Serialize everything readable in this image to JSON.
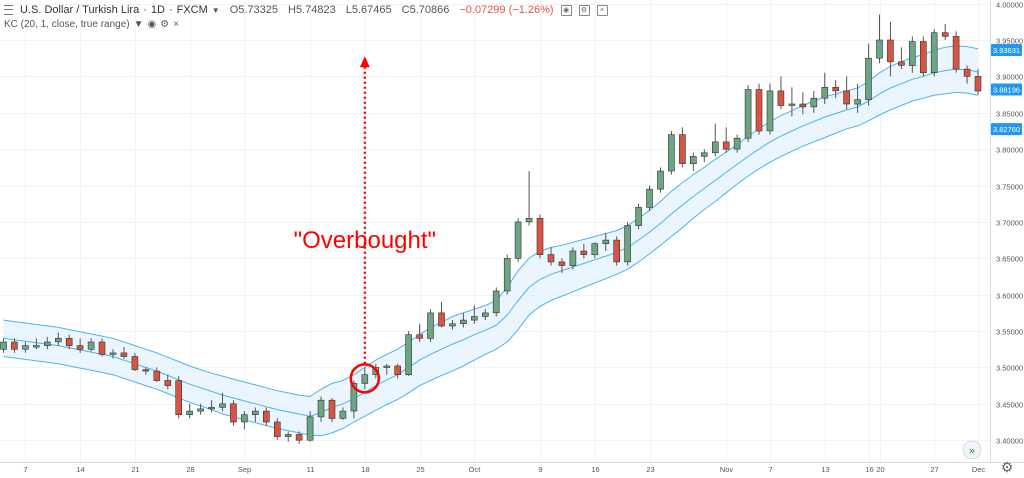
{
  "header": {
    "symbol": "U.S. Dollar / Turkish Lira",
    "interval": "1D",
    "exchange": "FXCM",
    "open": "O5.73325",
    "high": "H5.74823",
    "low": "L5.67465",
    "close": "C5.70866",
    "change": "−0.07299 (−1.26%)"
  },
  "indicator": {
    "label": "KC (20, 1, close, true range)"
  },
  "icons": {
    "menu": "hamburger-menu-icon",
    "dropdown": "chevron-down-icon",
    "hide": "eye-icon",
    "settings": "gear-icon",
    "close": "close-icon",
    "scroll": "double-chevron-right-icon"
  },
  "colors": {
    "up": "#6ba583",
    "down": "#d75442",
    "band": "#4fb3ea",
    "band_fill": "#e3f2fd",
    "annotation": "#ff0000",
    "price_tag": "#2196f3"
  },
  "chart_data": {
    "type": "candlestick",
    "ylim": [
      3.37,
      4.005
    ],
    "y_ticks": [
      3.4,
      3.45,
      3.5,
      3.55,
      3.6,
      3.65,
      3.7,
      3.75,
      3.8,
      3.85,
      3.9,
      3.95,
      4.0
    ],
    "y_tick_labels": [
      "3.40000",
      "3.45000",
      "3.50000",
      "3.55000",
      "3.60000",
      "3.65000",
      "3.70000",
      "3.75000",
      "3.80000",
      "3.85000",
      "3.90000",
      "3.95000",
      "4.00000"
    ],
    "x_labels": [
      {
        "label": "7",
        "index": 2
      },
      {
        "label": "14",
        "index": 7
      },
      {
        "label": "21",
        "index": 12
      },
      {
        "label": "28",
        "index": 17
      },
      {
        "label": "Sep",
        "index": 22
      },
      {
        "label": "11",
        "index": 28
      },
      {
        "label": "18",
        "index": 33
      },
      {
        "label": "25",
        "index": 38
      },
      {
        "label": "Oct",
        "index": 43
      },
      {
        "label": "9",
        "index": 49
      },
      {
        "label": "16",
        "index": 54
      },
      {
        "label": "23",
        "index": 59
      },
      {
        "label": "Nov",
        "index": 66
      },
      {
        "label": "7",
        "index": 70
      },
      {
        "label": "13",
        "index": 75
      },
      {
        "label": "16",
        "index": 79
      },
      {
        "label": "20",
        "index": 80
      },
      {
        "label": "27",
        "index": 85
      },
      {
        "label": "Dec",
        "index": 89
      }
    ],
    "candles": [
      [
        3.525,
        3.54,
        3.52,
        3.535
      ],
      [
        3.535,
        3.54,
        3.52,
        3.525
      ],
      [
        3.525,
        3.535,
        3.52,
        3.53
      ],
      [
        3.528,
        3.54,
        3.525,
        3.53
      ],
      [
        3.53,
        3.542,
        3.525,
        3.535
      ],
      [
        3.535,
        3.548,
        3.53,
        3.54
      ],
      [
        3.54,
        3.545,
        3.525,
        3.53
      ],
      [
        3.53,
        3.54,
        3.52,
        3.525
      ],
      [
        3.525,
        3.54,
        3.522,
        3.535
      ],
      [
        3.535,
        3.54,
        3.515,
        3.518
      ],
      [
        3.518,
        3.525,
        3.512,
        3.52
      ],
      [
        3.52,
        3.528,
        3.512,
        3.515
      ],
      [
        3.515,
        3.52,
        3.495,
        3.497
      ],
      [
        3.497,
        3.5,
        3.49,
        3.495
      ],
      [
        3.495,
        3.5,
        3.48,
        3.482
      ],
      [
        3.482,
        3.49,
        3.47,
        3.475
      ],
      [
        3.482,
        3.488,
        3.43,
        3.435
      ],
      [
        3.435,
        3.45,
        3.43,
        3.44
      ],
      [
        3.44,
        3.45,
        3.435,
        3.443
      ],
      [
        3.443,
        3.455,
        3.438,
        3.445
      ],
      [
        3.445,
        3.465,
        3.44,
        3.45
      ],
      [
        3.45,
        3.455,
        3.42,
        3.425
      ],
      [
        3.425,
        3.44,
        3.415,
        3.435
      ],
      [
        3.435,
        3.445,
        3.425,
        3.44
      ],
      [
        3.44,
        3.445,
        3.42,
        3.425
      ],
      [
        3.425,
        3.43,
        3.4,
        3.405
      ],
      [
        3.405,
        3.412,
        3.398,
        3.408
      ],
      [
        3.408,
        3.412,
        3.395,
        3.4
      ],
      [
        3.4,
        3.44,
        3.398,
        3.432
      ],
      [
        3.432,
        3.46,
        3.425,
        3.455
      ],
      [
        3.455,
        3.458,
        3.425,
        3.43
      ],
      [
        3.43,
        3.445,
        3.428,
        3.44
      ],
      [
        3.44,
        3.482,
        3.43,
        3.478
      ],
      [
        3.478,
        3.5,
        3.47,
        3.49
      ],
      [
        3.49,
        3.505,
        3.485,
        3.5
      ],
      [
        3.5,
        3.505,
        3.49,
        3.502
      ],
      [
        3.502,
        3.505,
        3.485,
        3.49
      ],
      [
        3.49,
        3.55,
        3.488,
        3.545
      ],
      [
        3.545,
        3.56,
        3.535,
        3.54
      ],
      [
        3.54,
        3.58,
        3.535,
        3.575
      ],
      [
        3.575,
        3.59,
        3.555,
        3.557
      ],
      [
        3.557,
        3.565,
        3.552,
        3.56
      ],
      [
        3.56,
        3.575,
        3.555,
        3.565
      ],
      [
        3.565,
        3.585,
        3.56,
        3.57
      ],
      [
        3.57,
        3.58,
        3.565,
        3.575
      ],
      [
        3.575,
        3.61,
        3.57,
        3.605
      ],
      [
        3.605,
        3.655,
        3.6,
        3.65
      ],
      [
        3.65,
        3.705,
        3.645,
        3.7
      ],
      [
        3.7,
        3.77,
        3.695,
        3.705
      ],
      [
        3.705,
        3.71,
        3.65,
        3.655
      ],
      [
        3.655,
        3.665,
        3.64,
        3.645
      ],
      [
        3.645,
        3.65,
        3.63,
        3.64
      ],
      [
        3.64,
        3.665,
        3.635,
        3.66
      ],
      [
        3.66,
        3.67,
        3.65,
        3.655
      ],
      [
        3.655,
        3.672,
        3.65,
        3.67
      ],
      [
        3.67,
        3.685,
        3.66,
        3.675
      ],
      [
        3.675,
        3.68,
        3.64,
        3.645
      ],
      [
        3.645,
        3.7,
        3.64,
        3.695
      ],
      [
        3.695,
        3.725,
        3.69,
        3.72
      ],
      [
        3.72,
        3.75,
        3.715,
        3.745
      ],
      [
        3.745,
        3.775,
        3.74,
        3.77
      ],
      [
        3.77,
        3.825,
        3.765,
        3.82
      ],
      [
        3.82,
        3.83,
        3.775,
        3.78
      ],
      [
        3.78,
        3.795,
        3.77,
        3.79
      ],
      [
        3.79,
        3.8,
        3.782,
        3.795
      ],
      [
        3.795,
        3.835,
        3.79,
        3.81
      ],
      [
        3.81,
        3.83,
        3.795,
        3.8
      ],
      [
        3.8,
        3.82,
        3.795,
        3.815
      ],
      [
        3.815,
        3.888,
        3.81,
        3.882
      ],
      [
        3.882,
        3.89,
        3.82,
        3.825
      ],
      [
        3.825,
        3.89,
        3.82,
        3.88
      ],
      [
        3.88,
        3.9,
        3.855,
        3.86
      ],
      [
        3.86,
        3.885,
        3.845,
        3.862
      ],
      [
        3.862,
        3.878,
        3.848,
        3.858
      ],
      [
        3.858,
        3.88,
        3.85,
        3.87
      ],
      [
        3.87,
        3.905,
        3.862,
        3.885
      ],
      [
        3.885,
        3.895,
        3.87,
        3.88
      ],
      [
        3.88,
        3.9,
        3.855,
        3.862
      ],
      [
        3.862,
        3.89,
        3.85,
        3.868
      ],
      [
        3.868,
        3.945,
        3.86,
        3.925
      ],
      [
        3.925,
        3.985,
        3.918,
        3.95
      ],
      [
        3.95,
        3.975,
        3.9,
        3.92
      ],
      [
        3.92,
        3.94,
        3.91,
        3.915
      ],
      [
        3.915,
        3.955,
        3.905,
        3.948
      ],
      [
        3.948,
        3.955,
        3.9,
        3.905
      ],
      [
        3.905,
        3.965,
        3.9,
        3.96
      ],
      [
        3.96,
        3.972,
        3.95,
        3.955
      ],
      [
        3.955,
        3.962,
        3.905,
        3.91
      ],
      [
        3.91,
        3.915,
        3.89,
        3.9
      ],
      [
        3.9,
        3.91,
        3.875,
        3.88
      ]
    ],
    "channel": {
      "upper": [
        3.565,
        3.563,
        3.561,
        3.559,
        3.557,
        3.555,
        3.552,
        3.549,
        3.546,
        3.543,
        3.54,
        3.535,
        3.53,
        3.525,
        3.52,
        3.514,
        3.508,
        3.502,
        3.497,
        3.492,
        3.488,
        3.484,
        3.48,
        3.476,
        3.472,
        3.468,
        3.465,
        3.462,
        3.46,
        3.47,
        3.478,
        3.482,
        3.49,
        3.5,
        3.51,
        3.518,
        3.525,
        3.535,
        3.545,
        3.555,
        3.562,
        3.57,
        3.575,
        3.58,
        3.585,
        3.592,
        3.61,
        3.633,
        3.65,
        3.66,
        3.665,
        3.668,
        3.672,
        3.676,
        3.68,
        3.684,
        3.688,
        3.695,
        3.705,
        3.716,
        3.728,
        3.742,
        3.754,
        3.765,
        3.775,
        3.786,
        3.796,
        3.806,
        3.818,
        3.828,
        3.838,
        3.846,
        3.853,
        3.86,
        3.866,
        3.872,
        3.876,
        3.88,
        3.884,
        3.893,
        3.905,
        3.914,
        3.92,
        3.926,
        3.93,
        3.936,
        3.94,
        3.942,
        3.941,
        3.938
      ],
      "middle": [
        3.54,
        3.538,
        3.536,
        3.534,
        3.532,
        3.53,
        3.527,
        3.524,
        3.521,
        3.518,
        3.515,
        3.51,
        3.505,
        3.5,
        3.495,
        3.489,
        3.483,
        3.477,
        3.472,
        3.467,
        3.462,
        3.458,
        3.454,
        3.45,
        3.446,
        3.442,
        3.439,
        3.436,
        3.433,
        3.438,
        3.445,
        3.45,
        3.457,
        3.466,
        3.475,
        3.483,
        3.49,
        3.5,
        3.51,
        3.518,
        3.525,
        3.532,
        3.538,
        3.545,
        3.551,
        3.558,
        3.572,
        3.592,
        3.61,
        3.621,
        3.628,
        3.633,
        3.638,
        3.643,
        3.648,
        3.653,
        3.658,
        3.665,
        3.675,
        3.686,
        3.698,
        3.711,
        3.723,
        3.735,
        3.746,
        3.757,
        3.768,
        3.779,
        3.79,
        3.8,
        3.81,
        3.818,
        3.825,
        3.832,
        3.838,
        3.844,
        3.849,
        3.854,
        3.858,
        3.866,
        3.876,
        3.884,
        3.89,
        3.896,
        3.9,
        3.905,
        3.908,
        3.91,
        3.909,
        3.906
      ],
      "lower": [
        3.515,
        3.513,
        3.511,
        3.509,
        3.507,
        3.505,
        3.502,
        3.499,
        3.496,
        3.493,
        3.49,
        3.485,
        3.48,
        3.475,
        3.47,
        3.464,
        3.458,
        3.452,
        3.447,
        3.442,
        3.436,
        3.432,
        3.428,
        3.424,
        3.42,
        3.416,
        3.413,
        3.41,
        3.407,
        3.406,
        3.41,
        3.416,
        3.425,
        3.433,
        3.441,
        3.449,
        3.456,
        3.465,
        3.475,
        3.482,
        3.489,
        3.495,
        3.502,
        3.51,
        3.518,
        3.525,
        3.535,
        3.552,
        3.572,
        3.584,
        3.592,
        3.598,
        3.604,
        3.61,
        3.616,
        3.622,
        3.628,
        3.635,
        3.645,
        3.656,
        3.668,
        3.68,
        3.692,
        3.705,
        3.717,
        3.728,
        3.74,
        3.752,
        3.763,
        3.773,
        3.782,
        3.79,
        3.797,
        3.804,
        3.81,
        3.816,
        3.822,
        3.828,
        3.832,
        3.839,
        3.847,
        3.854,
        3.86,
        3.866,
        3.87,
        3.874,
        3.876,
        3.878,
        3.877,
        3.874
      ]
    },
    "price_tags": [
      {
        "label": "3.93631",
        "value": 3.93631
      },
      {
        "label": "3.88196",
        "value": 3.88196
      },
      {
        "label": "3.82760",
        "value": 3.8276
      }
    ],
    "annotation": {
      "text": "\"Overbought\"",
      "circle_index": 33,
      "circle_value": 3.485,
      "arrow_from": 3.505,
      "arrow_to": 3.925
    }
  }
}
